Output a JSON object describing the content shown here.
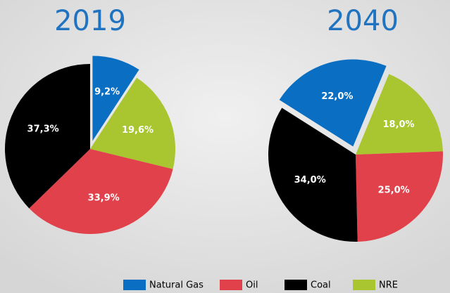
{
  "legend": [
    {
      "name": "Natural Gas",
      "color": "#0a6fc2"
    },
    {
      "name": "Oil",
      "color": "#e0414b"
    },
    {
      "name": "Coal",
      "color": "#000000"
    },
    {
      "name": "NRE",
      "color": "#a9c52f"
    }
  ],
  "chart_data": [
    {
      "type": "pie",
      "title": "2019",
      "values": [
        9.2,
        19.6,
        33.9,
        37.3
      ],
      "value_labels": [
        "9,2%",
        "19,6%",
        "33,9%",
        "37,3%"
      ],
      "colors": [
        "#0a6fc2",
        "#a9c52f",
        "#e0414b",
        "#000000"
      ],
      "start_angle": 0
    },
    {
      "type": "pie",
      "title": "2040",
      "values": [
        22.0,
        18.0,
        25.0,
        34.0
      ],
      "value_labels": [
        "22,0%",
        "18,0%",
        "25,0%",
        "34,0%"
      ],
      "colors": [
        "#0a6fc2",
        "#a9c52f",
        "#e0414b",
        "#000000"
      ],
      "start_angle": 302.4
    }
  ]
}
